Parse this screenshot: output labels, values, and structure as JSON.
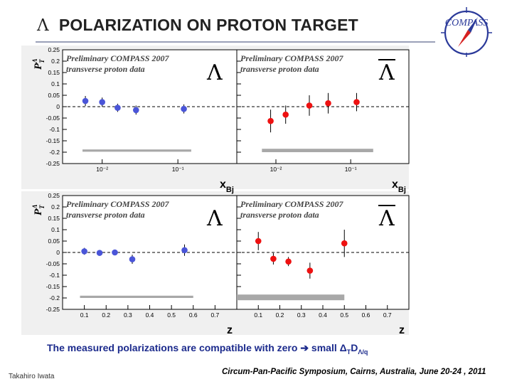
{
  "header": {
    "title_symbol": "Λ",
    "title": "POLARIZATION  ON PROTON TARGET",
    "logo_text": "COMPASS"
  },
  "colors": {
    "lambda_points": "#4a55d8",
    "antilambda_points": "#ee1111",
    "systematic_band": "#a8a8a8",
    "plot_background": "#f0f0f0",
    "divider_line": "#9aa0b8",
    "footer_blue": "#1b2a8c"
  },
  "chart_data": [
    {
      "id": "lambda_xbj",
      "type": "scatter",
      "annotation_lines": [
        "Preliminary COMPASS 2007",
        "transverse proton data"
      ],
      "particle": "Λ",
      "ylabel": "P_T^Λ",
      "xlabel": "x_Bj",
      "xscale": "log",
      "xlim": [
        0.003,
        0.6
      ],
      "ylim": [
        -0.25,
        0.25
      ],
      "yticks": [
        -0.25,
        -0.2,
        -0.15,
        -0.1,
        -0.05,
        0,
        0.05,
        0.1,
        0.15,
        0.2,
        0.25
      ],
      "xtick_labels": [
        {
          "value": 0.01,
          "label": "10⁻²"
        },
        {
          "value": 0.1,
          "label": "10⁻¹"
        }
      ],
      "points": [
        {
          "x": 0.006,
          "y": 0.025,
          "err": 0.022
        },
        {
          "x": 0.01,
          "y": 0.02,
          "err": 0.02
        },
        {
          "x": 0.016,
          "y": -0.005,
          "err": 0.018
        },
        {
          "x": 0.028,
          "y": -0.015,
          "err": 0.02
        },
        {
          "x": 0.12,
          "y": -0.01,
          "err": 0.02
        }
      ],
      "systematic_band": {
        "x_from": 0.0055,
        "x_to": 0.15,
        "y_low": -0.198,
        "y_high": -0.188
      }
    },
    {
      "id": "antilambda_xbj",
      "type": "scatter",
      "annotation_lines": [
        "Preliminary COMPASS 2007",
        "transverse proton data"
      ],
      "particle": "Λ̄",
      "ylabel": "",
      "xlabel": "x_Bj",
      "xscale": "log",
      "xlim": [
        0.003,
        0.6
      ],
      "ylim": [
        -0.25,
        0.25
      ],
      "yticks": [
        -0.25,
        -0.2,
        -0.15,
        -0.1,
        -0.05,
        0,
        0.05,
        0.1,
        0.15,
        0.2,
        0.25
      ],
      "xtick_labels": [
        {
          "value": 0.01,
          "label": "10⁻²"
        },
        {
          "value": 0.1,
          "label": "10⁻¹"
        }
      ],
      "points": [
        {
          "x": 0.0085,
          "y": -0.063,
          "err": 0.05
        },
        {
          "x": 0.0135,
          "y": -0.035,
          "err": 0.04
        },
        {
          "x": 0.028,
          "y": 0.005,
          "err": 0.045
        },
        {
          "x": 0.05,
          "y": 0.015,
          "err": 0.045
        },
        {
          "x": 0.12,
          "y": 0.02,
          "err": 0.04
        }
      ],
      "systematic_band": {
        "x_from": 0.0065,
        "x_to": 0.2,
        "y_low": -0.2,
        "y_high": -0.185
      }
    },
    {
      "id": "lambda_z",
      "type": "scatter",
      "annotation_lines": [
        "Preliminary COMPASS 2007",
        "transverse proton data"
      ],
      "particle": "Λ",
      "ylabel": "P_T^Λ",
      "xlabel": "z",
      "xscale": "linear",
      "xlim": [
        0,
        0.8
      ],
      "ylim": [
        -0.25,
        0.25
      ],
      "yticks": [
        -0.25,
        -0.2,
        -0.15,
        -0.1,
        -0.05,
        0,
        0.05,
        0.1,
        0.15,
        0.2,
        0.25
      ],
      "xtick_labels": [
        {
          "value": 0.1,
          "label": "0.1"
        },
        {
          "value": 0.2,
          "label": "0.2"
        },
        {
          "value": 0.3,
          "label": "0.3"
        },
        {
          "value": 0.4,
          "label": "0.4"
        },
        {
          "value": 0.5,
          "label": "0.5"
        },
        {
          "value": 0.6,
          "label": "0.6"
        },
        {
          "value": 0.7,
          "label": "0.7"
        }
      ],
      "points": [
        {
          "x": 0.1,
          "y": 0.005,
          "err": 0.015
        },
        {
          "x": 0.17,
          "y": -0.002,
          "err": 0.012
        },
        {
          "x": 0.24,
          "y": 0.0,
          "err": 0.012
        },
        {
          "x": 0.32,
          "y": -0.03,
          "err": 0.02
        },
        {
          "x": 0.56,
          "y": 0.01,
          "err": 0.025
        }
      ],
      "systematic_band": {
        "x_from": 0.08,
        "x_to": 0.6,
        "y_low": -0.2,
        "y_high": -0.19
      }
    },
    {
      "id": "antilambda_z",
      "type": "scatter",
      "annotation_lines": [
        "Preliminary COMPASS 2007",
        "transverse proton data"
      ],
      "particle": "Λ̄",
      "ylabel": "",
      "xlabel": "z",
      "xscale": "linear",
      "xlim": [
        0,
        0.8
      ],
      "ylim": [
        -0.25,
        0.25
      ],
      "yticks": [
        -0.25,
        -0.2,
        -0.15,
        -0.1,
        -0.05,
        0,
        0.05,
        0.1,
        0.15,
        0.2,
        0.25
      ],
      "xtick_labels": [
        {
          "value": 0.1,
          "label": "0.1"
        },
        {
          "value": 0.2,
          "label": "0.2"
        },
        {
          "value": 0.3,
          "label": "0.3"
        },
        {
          "value": 0.4,
          "label": "0.4"
        },
        {
          "value": 0.5,
          "label": "0.5"
        },
        {
          "value": 0.6,
          "label": "0.6"
        },
        {
          "value": 0.7,
          "label": "0.7"
        }
      ],
      "points": [
        {
          "x": 0.1,
          "y": 0.05,
          "err": 0.04
        },
        {
          "x": 0.17,
          "y": -0.028,
          "err": 0.025
        },
        {
          "x": 0.24,
          "y": -0.04,
          "err": 0.02
        },
        {
          "x": 0.34,
          "y": -0.08,
          "err": 0.035
        },
        {
          "x": 0.5,
          "y": 0.04,
          "err": 0.06
        }
      ],
      "systematic_band": {
        "x_from": 0.0,
        "x_to": 0.5,
        "y_low": -0.21,
        "y_high": -0.185
      }
    }
  ],
  "footer": {
    "conclusion_text": "The measured polarizations are compatible with zero ",
    "conclusion_arrow": "➔",
    "conclusion_text2": " small ",
    "conclusion_symbol": "Δ",
    "conclusion_sub1": "T",
    "conclusion_d": "D",
    "conclusion_sub2": "Λ/q",
    "author": "Takahiro Iwata",
    "conference": "Circum-Pan-Pacific Symposium, Cairns, Australia, June 20-24 , 2011"
  }
}
